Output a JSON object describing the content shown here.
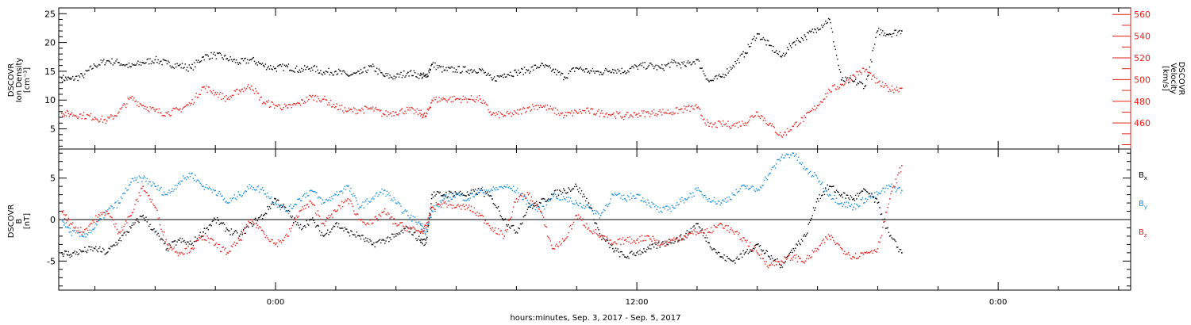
{
  "colors": {
    "axis": "#000000",
    "black_series": "#000000",
    "red_series": "#e8201a",
    "blue_series": "#1a8ee0"
  },
  "xlabel": "hours:minutes, Sep.  3, 2017 - Sep.  5, 2017",
  "chart_data": [
    {
      "type": "scatter",
      "panel": "top",
      "ylabel_lines": [
        "DSCOVR",
        "Ion Density",
        "[cm⁻³]"
      ],
      "y2label_lines": [
        "DSCOVR",
        "Velocity",
        "[km/s]"
      ],
      "xlim": [
        -7.2,
        28.4
      ],
      "x_ticks": [
        0,
        12,
        24
      ],
      "x_ticklabels": [
        "0:00",
        "12:00",
        "0:00"
      ],
      "ylim": [
        1.5,
        26
      ],
      "y_ticks": [
        5,
        10,
        15,
        20,
        25
      ],
      "y2lim": [
        436,
        566
      ],
      "y2_ticks": [
        460,
        480,
        500,
        520,
        540,
        560
      ],
      "grid": false,
      "series": [
        {
          "axis": "left",
          "color": "black",
          "x": [
            -7.1,
            -6.8,
            -6.4,
            -6.0,
            -5.6,
            -5.2,
            -4.8,
            -4.4,
            -4.0,
            -3.6,
            -3.2,
            -2.8,
            -2.4,
            -2.0,
            -1.6,
            -1.2,
            -0.8,
            -0.4,
            0.0,
            0.4,
            0.8,
            1.2,
            1.6,
            2.0,
            2.4,
            2.8,
            3.2,
            3.6,
            4.0,
            4.4,
            4.8,
            5.0,
            5.2,
            5.6,
            6.0,
            6.4,
            6.8,
            7.2,
            7.6,
            8.0,
            8.4,
            8.8,
            9.2,
            9.6,
            10.0,
            10.4,
            10.8,
            11.2,
            11.6,
            12.0,
            12.4,
            12.8,
            13.2,
            13.6,
            14.0,
            14.4,
            14.8,
            15.2,
            15.6,
            16.0,
            16.4,
            16.8,
            17.2,
            17.6,
            18.0,
            18.4,
            18.8,
            19.2,
            19.6,
            20.0,
            20.4,
            20.8
          ],
          "y": [
            13.8,
            13.6,
            14.2,
            16.0,
            16.8,
            16.5,
            15.8,
            16.5,
            17.0,
            16.3,
            16.0,
            15.5,
            17.5,
            17.8,
            17.2,
            16.5,
            17.0,
            16.0,
            15.5,
            15.8,
            15.2,
            15.6,
            14.8,
            15.0,
            14.3,
            14.6,
            15.8,
            14.2,
            14.0,
            14.8,
            14.3,
            14.0,
            16.2,
            15.2,
            15.3,
            15.2,
            15.3,
            13.5,
            14.5,
            14.8,
            15.2,
            16.0,
            15.2,
            14.0,
            15.6,
            15.0,
            14.8,
            15.3,
            15.0,
            15.8,
            16.0,
            15.5,
            16.5,
            16.0,
            17.0,
            13.2,
            14.0,
            16.0,
            18.2,
            21.5,
            19.5,
            17.5,
            20.0,
            21.0,
            22.5,
            24.0,
            13.5,
            13.2,
            12.5,
            22.0,
            21.5,
            22.0
          ]
        },
        {
          "axis": "right",
          "color": "red",
          "x": [
            -7.1,
            -6.8,
            -6.4,
            -6.0,
            -5.6,
            -5.2,
            -4.8,
            -4.4,
            -4.0,
            -3.6,
            -3.2,
            -2.8,
            -2.4,
            -2.0,
            -1.6,
            -1.2,
            -0.8,
            -0.4,
            0.0,
            0.4,
            0.8,
            1.2,
            1.6,
            2.0,
            2.4,
            2.8,
            3.2,
            3.6,
            4.0,
            4.4,
            4.8,
            5.0,
            5.2,
            5.6,
            6.0,
            6.4,
            6.8,
            7.2,
            7.6,
            8.0,
            8.4,
            8.8,
            9.2,
            9.6,
            10.0,
            10.4,
            10.8,
            11.2,
            11.6,
            12.0,
            12.4,
            12.8,
            13.2,
            13.6,
            14.0,
            14.4,
            14.8,
            15.2,
            15.6,
            16.0,
            16.4,
            16.8,
            17.2,
            17.6,
            18.0,
            18.4,
            18.8,
            19.2,
            19.6,
            20.0,
            20.4,
            20.8
          ],
          "y": [
            469,
            468,
            467,
            465,
            462,
            470,
            483,
            476,
            471,
            469,
            472,
            478,
            493,
            488,
            482,
            490,
            494,
            479,
            476,
            474,
            478,
            484,
            482,
            475,
            471,
            472,
            473,
            468,
            470,
            472,
            469,
            466,
            481,
            482,
            482,
            482,
            482,
            468,
            467,
            469,
            474,
            476,
            472,
            467,
            470,
            471,
            469,
            468,
            466,
            468,
            469,
            470,
            470,
            473,
            474,
            457,
            459,
            458,
            460,
            470,
            459,
            448,
            457,
            465,
            476,
            490,
            495,
            504,
            509,
            497,
            491,
            492
          ]
        }
      ]
    },
    {
      "type": "scatter",
      "panel": "bottom",
      "ylabel_lines": [
        "DSCOVR",
        "B",
        "[nT]"
      ],
      "xlim": [
        -7.2,
        28.4
      ],
      "x_ticks": [
        0,
        12,
        24
      ],
      "ylim": [
        -8.5,
        8.5
      ],
      "y_ticks": [
        -5,
        0,
        5
      ],
      "zero_line": true,
      "grid": false,
      "series": [
        {
          "name": "Bx",
          "color": "black",
          "x": [
            -7.1,
            -6.8,
            -6.4,
            -6.0,
            -5.6,
            -5.2,
            -4.8,
            -4.4,
            -4.0,
            -3.6,
            -3.2,
            -2.8,
            -2.4,
            -2.0,
            -1.6,
            -1.2,
            -0.8,
            -0.4,
            0.0,
            0.4,
            0.8,
            1.2,
            1.6,
            2.0,
            2.4,
            2.8,
            3.2,
            3.6,
            4.0,
            4.4,
            4.8,
            5.0,
            5.2,
            5.6,
            6.0,
            6.4,
            6.8,
            7.2,
            7.6,
            8.0,
            8.4,
            8.8,
            9.2,
            9.6,
            10.0,
            10.4,
            10.8,
            11.2,
            11.6,
            12.0,
            12.4,
            12.8,
            13.2,
            13.6,
            14.0,
            14.4,
            14.8,
            15.2,
            15.6,
            16.0,
            16.4,
            16.8,
            17.2,
            17.6,
            18.0,
            18.4,
            18.8,
            19.2,
            19.6,
            20.0,
            20.4,
            20.8
          ],
          "y": [
            -4.0,
            -4.2,
            -3.8,
            -3.5,
            -4.0,
            -2.5,
            -1.0,
            0.5,
            -1.5,
            -3.5,
            -2.5,
            -3.0,
            -1.5,
            0.0,
            -1.2,
            -2.0,
            -0.5,
            0.5,
            2.5,
            1.0,
            -1.0,
            0.0,
            -2.0,
            -0.5,
            -1.5,
            -2.0,
            -3.0,
            -2.5,
            -2.0,
            -1.0,
            -2.5,
            -2.8,
            3.0,
            3.0,
            3.2,
            3.0,
            3.5,
            2.5,
            0.0,
            -1.5,
            1.5,
            2.0,
            3.0,
            3.5,
            4.0,
            2.0,
            -2.0,
            -3.5,
            -4.5,
            -4.0,
            -3.5,
            -3.0,
            -2.5,
            -2.0,
            -0.5,
            -2.8,
            -4.5,
            -5.0,
            -4.0,
            -3.0,
            -4.5,
            -5.5,
            -3.5,
            -2.0,
            2.5,
            4.0,
            3.0,
            2.5,
            3.5,
            2.0,
            -2.0,
            -4.0
          ]
        },
        {
          "name": "By",
          "color": "blue",
          "x": [
            -7.1,
            -6.8,
            -6.4,
            -6.0,
            -5.6,
            -5.2,
            -4.8,
            -4.4,
            -4.0,
            -3.6,
            -3.2,
            -2.8,
            -2.4,
            -2.0,
            -1.6,
            -1.2,
            -0.8,
            -0.4,
            0.0,
            0.4,
            0.8,
            1.2,
            1.6,
            2.0,
            2.4,
            2.8,
            3.2,
            3.6,
            4.0,
            4.4,
            4.8,
            5.0,
            5.2,
            5.6,
            6.0,
            6.4,
            6.8,
            7.2,
            7.6,
            8.0,
            8.4,
            8.8,
            9.2,
            9.6,
            10.0,
            10.4,
            10.8,
            11.2,
            11.6,
            12.0,
            12.4,
            12.8,
            13.2,
            13.6,
            14.0,
            14.4,
            14.8,
            15.2,
            15.6,
            16.0,
            16.4,
            16.8,
            17.2,
            17.6,
            18.0,
            18.4,
            18.8,
            19.2,
            19.6,
            20.0,
            20.4,
            20.8
          ],
          "y": [
            0.0,
            -1.5,
            -2.0,
            -1.0,
            1.0,
            2.0,
            4.5,
            5.0,
            4.0,
            3.0,
            4.5,
            5.5,
            4.0,
            3.5,
            2.0,
            3.0,
            4.0,
            3.5,
            2.0,
            1.0,
            2.5,
            3.5,
            2.0,
            3.0,
            4.0,
            1.5,
            2.5,
            3.5,
            2.0,
            0.5,
            -0.5,
            -1.5,
            1.0,
            2.5,
            3.0,
            2.5,
            3.5,
            3.5,
            4.0,
            3.5,
            2.0,
            1.0,
            3.0,
            2.5,
            2.0,
            1.5,
            0.5,
            3.0,
            2.5,
            3.0,
            2.0,
            1.0,
            1.5,
            2.5,
            3.5,
            2.5,
            2.0,
            3.0,
            4.0,
            3.5,
            5.5,
            7.5,
            8.0,
            6.0,
            5.0,
            3.0,
            2.0,
            1.5,
            2.5,
            3.0,
            4.0,
            3.5
          ]
        },
        {
          "name": "Bz",
          "color": "red",
          "x": [
            -7.1,
            -6.8,
            -6.4,
            -6.0,
            -5.6,
            -5.2,
            -4.8,
            -4.4,
            -4.0,
            -3.6,
            -3.2,
            -2.8,
            -2.4,
            -2.0,
            -1.6,
            -1.2,
            -0.8,
            -0.4,
            0.0,
            0.4,
            0.8,
            1.2,
            1.6,
            2.0,
            2.4,
            2.8,
            3.2,
            3.6,
            4.0,
            4.4,
            4.8,
            5.0,
            5.2,
            5.6,
            6.0,
            6.4,
            6.8,
            7.2,
            7.6,
            8.0,
            8.4,
            8.8,
            9.2,
            9.6,
            10.0,
            10.4,
            10.8,
            11.2,
            11.6,
            12.0,
            12.4,
            12.8,
            13.2,
            13.6,
            14.0,
            14.4,
            14.8,
            15.2,
            15.6,
            16.0,
            16.4,
            16.8,
            17.2,
            17.6,
            18.0,
            18.4,
            18.8,
            19.2,
            19.6,
            20.0,
            20.4,
            20.8
          ],
          "y": [
            1.0,
            -0.5,
            -1.5,
            0.0,
            1.0,
            -1.5,
            0.5,
            4.0,
            1.5,
            -3.0,
            -4.0,
            -3.5,
            -2.0,
            -3.0,
            -4.0,
            -2.5,
            0.0,
            -1.5,
            -3.0,
            -2.0,
            1.0,
            2.0,
            -0.5,
            1.0,
            2.5,
            0.0,
            -0.5,
            1.0,
            -0.5,
            -1.0,
            -1.5,
            -1.0,
            1.5,
            2.0,
            1.5,
            1.5,
            0.5,
            -1.0,
            -2.0,
            2.5,
            3.0,
            1.0,
            -3.5,
            -2.5,
            0.5,
            -1.0,
            -2.0,
            -3.0,
            -2.5,
            -2.5,
            -2.0,
            -3.0,
            -2.5,
            -2.0,
            -1.5,
            -1.5,
            -0.5,
            -1.5,
            -2.5,
            -4.0,
            -5.5,
            -5.0,
            -4.5,
            -5.0,
            -3.5,
            -2.0,
            -3.5,
            -4.5,
            -4.0,
            -3.5,
            2.5,
            6.5
          ]
        }
      ]
    }
  ]
}
